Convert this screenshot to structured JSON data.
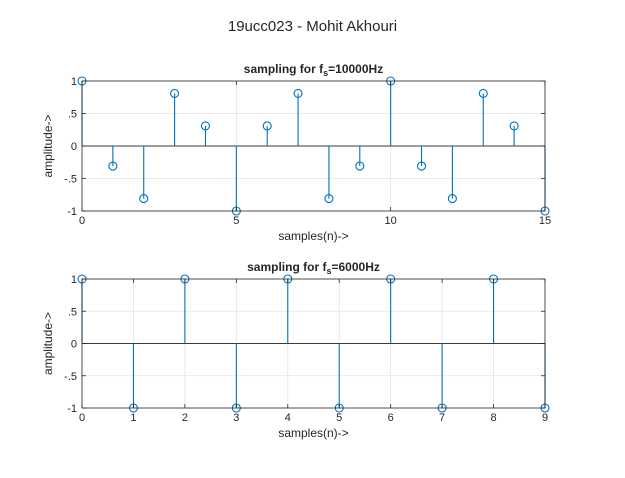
{
  "figure": {
    "title": "19ucc023 - Mohit Akhouri"
  },
  "chart_data": [
    {
      "type": "stem",
      "title_main": "sampling for f",
      "title_sub": "s",
      "title_tail": "=10000Hz",
      "xlabel": "samples(n)->",
      "ylabel": "amplitude->",
      "xlim": [
        0,
        15
      ],
      "ylim": [
        -1,
        1
      ],
      "xticks": [
        0,
        5,
        10,
        15
      ],
      "yticks": [
        -1,
        -0.5,
        0,
        0.5,
        1
      ],
      "grid": true,
      "color": "#0072BD",
      "x": [
        0,
        1,
        2,
        3,
        4,
        5,
        6,
        7,
        8,
        9,
        10,
        11,
        12,
        13,
        14,
        15
      ],
      "y": [
        1,
        -0.309,
        -0.809,
        0.809,
        0.309,
        -1,
        0.309,
        0.809,
        -0.809,
        -0.309,
        1,
        -0.309,
        -0.809,
        0.809,
        0.309,
        -1
      ]
    },
    {
      "type": "stem",
      "title_main": "sampling for f",
      "title_sub": "s",
      "title_tail": "=6000Hz",
      "xlabel": "samples(n)->",
      "ylabel": "amplitude->",
      "xlim": [
        0,
        9
      ],
      "ylim": [
        -1,
        1
      ],
      "xticks": [
        0,
        1,
        2,
        3,
        4,
        5,
        6,
        7,
        8,
        9
      ],
      "yticks": [
        -1,
        -0.5,
        0,
        0.5,
        1
      ],
      "grid": true,
      "color": "#0072BD",
      "x": [
        0,
        1,
        2,
        3,
        4,
        5,
        6,
        7,
        8,
        9
      ],
      "y": [
        1,
        -1,
        1,
        -1,
        1,
        -1,
        1,
        -1,
        1,
        -1
      ]
    }
  ]
}
